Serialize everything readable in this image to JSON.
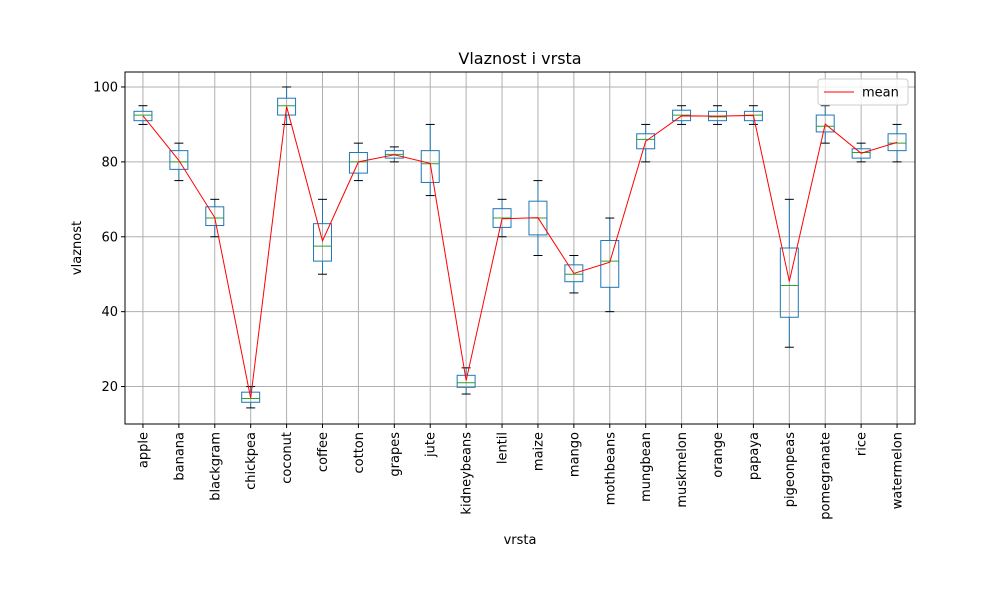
{
  "chart_data": {
    "type": "box",
    "title": "Vlaznost i vrsta",
    "xlabel": "vrsta",
    "ylabel": "vlaznost",
    "ylim": [
      10,
      104
    ],
    "yticks": [
      20,
      40,
      60,
      80,
      100
    ],
    "grid": true,
    "legend": {
      "placement": "top-right",
      "entries": [
        "mean"
      ]
    },
    "colors": {
      "box": "#1f77b4",
      "median": "#2ca02c",
      "mean_line": "#ff0000",
      "grid": "#b0b0b0"
    },
    "categories": [
      "apple",
      "banana",
      "blackgram",
      "chickpea",
      "coconut",
      "coffee",
      "cotton",
      "grapes",
      "jute",
      "kidneybeans",
      "lentil",
      "maize",
      "mango",
      "mothbeans",
      "mungbean",
      "muskmelon",
      "orange",
      "papaya",
      "pigeonpeas",
      "pomegranate",
      "rice",
      "watermelon"
    ],
    "boxes": [
      {
        "whislo": 90.0,
        "q1": 91.0,
        "med": 92.5,
        "q3": 93.5,
        "whishi": 95.0
      },
      {
        "whislo": 75.0,
        "q1": 78.0,
        "med": 80.0,
        "q3": 83.0,
        "whishi": 85.0
      },
      {
        "whislo": 60.0,
        "q1": 63.0,
        "med": 65.0,
        "q3": 68.0,
        "whishi": 70.0
      },
      {
        "whislo": 14.3,
        "q1": 15.8,
        "med": 16.8,
        "q3": 18.5,
        "whishi": 20.0
      },
      {
        "whislo": 90.0,
        "q1": 92.5,
        "med": 95.0,
        "q3": 97.0,
        "whishi": 100.0
      },
      {
        "whislo": 50.0,
        "q1": 53.5,
        "med": 57.5,
        "q3": 63.5,
        "whishi": 70.0
      },
      {
        "whislo": 75.0,
        "q1": 77.0,
        "med": 80.0,
        "q3": 82.5,
        "whishi": 85.0
      },
      {
        "whislo": 80.0,
        "q1": 81.0,
        "med": 82.0,
        "q3": 83.0,
        "whishi": 84.0
      },
      {
        "whislo": 71.0,
        "q1": 74.5,
        "med": 79.5,
        "q3": 83.0,
        "whishi": 90.0
      },
      {
        "whislo": 18.0,
        "q1": 19.8,
        "med": 21.0,
        "q3": 23.0,
        "whishi": 25.0
      },
      {
        "whislo": 60.0,
        "q1": 62.5,
        "med": 65.0,
        "q3": 67.5,
        "whishi": 70.0
      },
      {
        "whislo": 55.0,
        "q1": 60.5,
        "med": 65.0,
        "q3": 69.5,
        "whishi": 75.0
      },
      {
        "whislo": 45.0,
        "q1": 48.0,
        "med": 50.0,
        "q3": 52.5,
        "whishi": 55.0
      },
      {
        "whislo": 40.0,
        "q1": 46.5,
        "med": 53.5,
        "q3": 59.0,
        "whishi": 65.0
      },
      {
        "whislo": 80.0,
        "q1": 83.5,
        "med": 86.0,
        "q3": 87.5,
        "whishi": 90.0
      },
      {
        "whislo": 90.0,
        "q1": 91.0,
        "med": 92.5,
        "q3": 93.8,
        "whishi": 95.0
      },
      {
        "whislo": 90.0,
        "q1": 91.0,
        "med": 92.0,
        "q3": 93.5,
        "whishi": 95.0
      },
      {
        "whislo": 90.0,
        "q1": 91.0,
        "med": 92.5,
        "q3": 93.5,
        "whishi": 95.0
      },
      {
        "whislo": 30.5,
        "q1": 38.5,
        "med": 47.0,
        "q3": 57.0,
        "whishi": 70.0
      },
      {
        "whislo": 85.0,
        "q1": 88.0,
        "med": 89.5,
        "q3": 92.5,
        "whishi": 95.0
      },
      {
        "whislo": 80.0,
        "q1": 81.0,
        "med": 82.5,
        "q3": 83.5,
        "whishi": 85.0
      },
      {
        "whislo": 80.0,
        "q1": 83.0,
        "med": 85.0,
        "q3": 87.5,
        "whishi": 90.0
      }
    ],
    "series": [
      {
        "name": "mean",
        "values": [
          92.3,
          80.4,
          65.1,
          16.9,
          94.8,
          58.9,
          80.0,
          81.9,
          79.6,
          21.6,
          64.8,
          65.1,
          50.2,
          53.2,
          85.5,
          92.3,
          92.2,
          92.4,
          48.1,
          90.1,
          82.3,
          85.2
        ]
      }
    ]
  }
}
